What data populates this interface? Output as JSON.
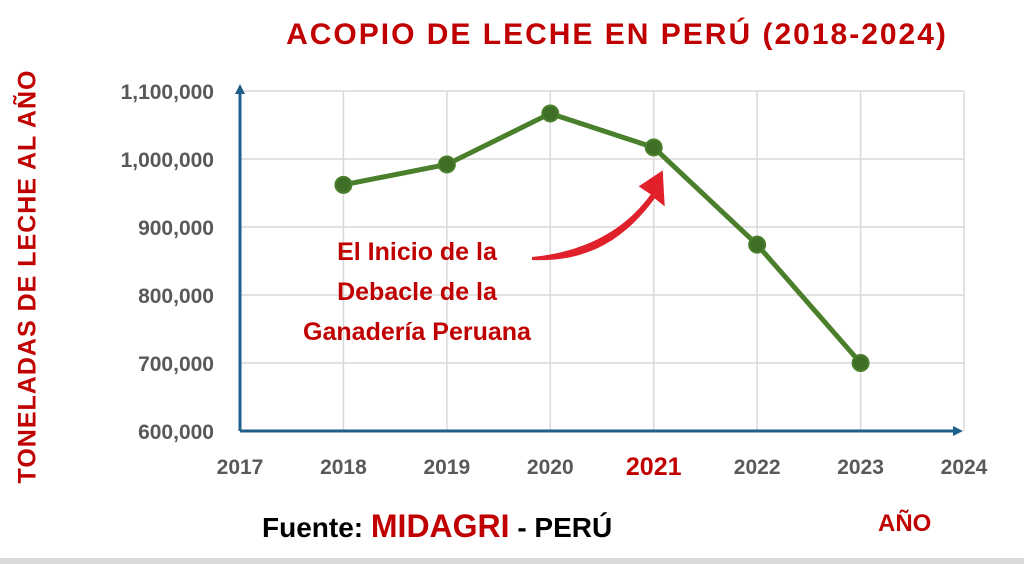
{
  "colors": {
    "accent_red": "#c00000",
    "line_green": "#4a7f2b",
    "marker_fill": "#3f6e26",
    "axis_blue": "#1f5f8b",
    "tick_gray": "#595959",
    "grid": "#d9d9d9",
    "arrow_red": "#e0202a"
  },
  "chart_data": {
    "type": "line",
    "title": "ACOPIO  DE  LECHE  EN  PERÚ  (2018-2024)",
    "xlabel": "AÑO",
    "ylabel": "TONELADAS  DE  LECHE  AL  AÑO",
    "x": [
      2018,
      2019,
      2020,
      2021,
      2022,
      2023
    ],
    "series": [
      {
        "values": [
          962000,
          992000,
          1067000,
          1017000,
          874000,
          700000
        ]
      }
    ],
    "xlim": [
      2017,
      2024
    ],
    "ylim": [
      600000,
      1100000
    ],
    "x_ticks": [
      "2017",
      "2018",
      "2019",
      "2020",
      "2021",
      "2022",
      "2023",
      "2024"
    ],
    "highlighted_x_tick": "2021",
    "y_ticks": [
      "600,000",
      "700,000",
      "800,000",
      "900,000",
      "1,000,000",
      "1,100,000"
    ],
    "grid": true,
    "legend": "none",
    "annotation": {
      "lines": [
        "El Inicio de la",
        "Debacle de la",
        "Ganadería Peruana"
      ],
      "points_to_x": 2021
    }
  },
  "source": {
    "prefix": "Fuente: ",
    "brand": "MIDAGRI",
    "suffix": " - PERÚ"
  }
}
